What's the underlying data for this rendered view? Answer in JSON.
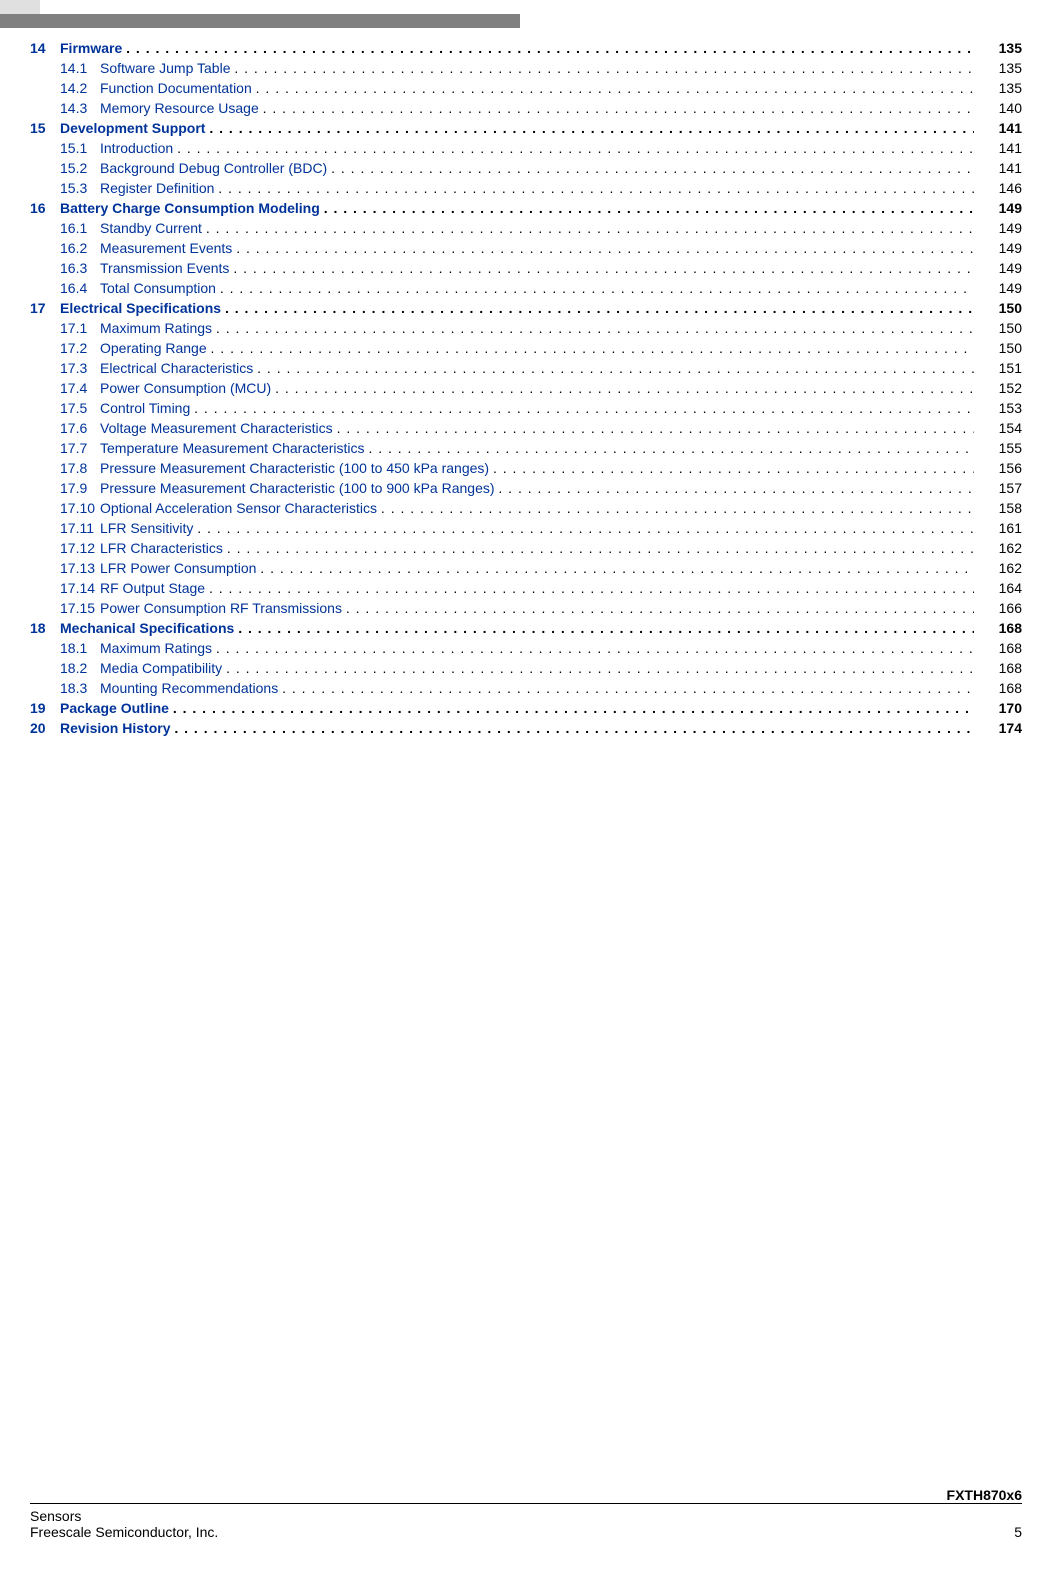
{
  "link_color": "#003399",
  "text_color": "#000000",
  "toc": [
    {
      "type": "chapter",
      "num": "14",
      "title": "Firmware",
      "page": "135"
    },
    {
      "type": "section",
      "num": "14.1",
      "title": "Software Jump Table",
      "page": "135"
    },
    {
      "type": "section",
      "num": "14.2",
      "title": "Function Documentation",
      "page": "135"
    },
    {
      "type": "section",
      "num": "14.3",
      "title": "Memory Resource Usage",
      "page": "140"
    },
    {
      "type": "chapter",
      "num": "15",
      "title": "Development Support",
      "page": "141"
    },
    {
      "type": "section",
      "num": "15.1",
      "title": "Introduction",
      "page": "141"
    },
    {
      "type": "section",
      "num": "15.2",
      "title": "Background Debug Controller (BDC)",
      "page": "141"
    },
    {
      "type": "section",
      "num": "15.3",
      "title": "Register Definition",
      "page": "146"
    },
    {
      "type": "chapter",
      "num": "16",
      "title": "Battery Charge Consumption Modeling",
      "page": "149"
    },
    {
      "type": "section",
      "num": "16.1",
      "title": "Standby Current",
      "page": "149"
    },
    {
      "type": "section",
      "num": "16.2",
      "title": "Measurement Events",
      "page": "149"
    },
    {
      "type": "section",
      "num": "16.3",
      "title": "Transmission Events",
      "page": "149"
    },
    {
      "type": "section",
      "num": "16.4",
      "title": "Total Consumption",
      "page": "149"
    },
    {
      "type": "chapter",
      "num": "17",
      "title": "Electrical Specifications",
      "page": "150"
    },
    {
      "type": "section",
      "num": "17.1",
      "title": "Maximum Ratings",
      "page": "150"
    },
    {
      "type": "section",
      "num": "17.2",
      "title": "Operating Range",
      "page": "150"
    },
    {
      "type": "section",
      "num": "17.3",
      "title": "Electrical Characteristics",
      "page": "151"
    },
    {
      "type": "section",
      "num": "17.4",
      "title": "Power Consumption (MCU)",
      "page": "152"
    },
    {
      "type": "section",
      "num": "17.5",
      "title": "Control Timing",
      "page": "153"
    },
    {
      "type": "section",
      "num": "17.6",
      "title": "Voltage Measurement Characteristics",
      "page": "154"
    },
    {
      "type": "section",
      "num": "17.7",
      "title": "Temperature Measurement Characteristics",
      "page": "155"
    },
    {
      "type": "section",
      "num": "17.8",
      "title": "Pressure Measurement Characteristic (100 to 450 kPa ranges)",
      "page": "156"
    },
    {
      "type": "section",
      "num": "17.9",
      "title": "Pressure Measurement Characteristic (100 to 900 kPa Ranges)",
      "page": "157"
    },
    {
      "type": "section",
      "num": "17.10",
      "title": "Optional Acceleration Sensor Characteristics",
      "page": "158"
    },
    {
      "type": "section",
      "num": "17.11",
      "title": "LFR Sensitivity",
      "page": "161"
    },
    {
      "type": "section",
      "num": "17.12",
      "title": "LFR Characteristics",
      "page": "162"
    },
    {
      "type": "section",
      "num": "17.13",
      "title": "LFR Power Consumption",
      "page": "162"
    },
    {
      "type": "section",
      "num": "17.14",
      "title": "RF Output Stage",
      "page": "164"
    },
    {
      "type": "section",
      "num": "17.15",
      "title": "Power Consumption RF Transmissions",
      "page": "166"
    },
    {
      "type": "chapter",
      "num": "18",
      "title": "Mechanical Specifications",
      "page": "168"
    },
    {
      "type": "section",
      "num": "18.1",
      "title": "Maximum Ratings",
      "page": "168"
    },
    {
      "type": "section",
      "num": "18.2",
      "title": "Media Compatibility",
      "page": "168"
    },
    {
      "type": "section",
      "num": "18.3",
      "title": "Mounting Recommendations",
      "page": "168"
    },
    {
      "type": "chapter",
      "num": "19",
      "title": "Package Outline",
      "page": "170"
    },
    {
      "type": "chapter",
      "num": "20",
      "title": "Revision History",
      "page": "174"
    }
  ],
  "footer": {
    "doc_title": "FXTH870x6",
    "left1": "Sensors",
    "left2": "Freescale Semiconductor, Inc.",
    "page_num": "5"
  }
}
